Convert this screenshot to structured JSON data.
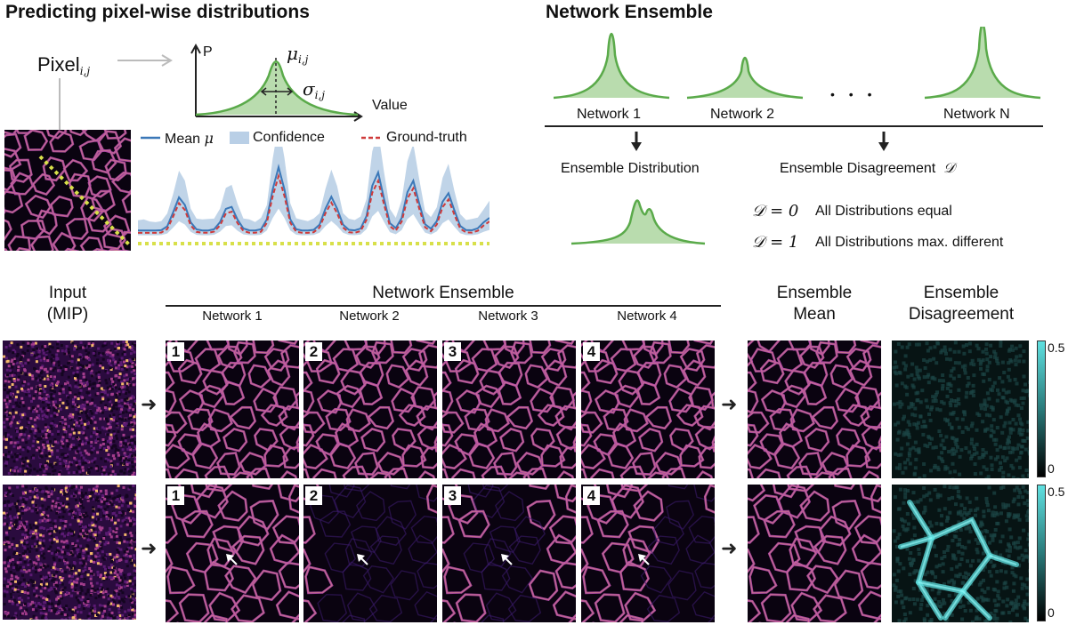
{
  "panel_a": {
    "title": "Predicting pixel-wise distributions",
    "pixel_label": "Pixel",
    "pixel_sub": "i,j",
    "axis_p": "P",
    "axis_value": "Value",
    "mu_label": "μ",
    "mu_sub": "i,j",
    "sigma_label": "σ",
    "sigma_sub": "i,j",
    "legend": {
      "mean": "Mean",
      "mean_symbol": "μ",
      "confidence": "Confidence",
      "ground_truth": "Ground-truth"
    }
  },
  "panel_b": {
    "title": "Network Ensemble",
    "networks": [
      "Network 1",
      "Network 2",
      "Network N"
    ],
    "ellipsis": "• • •",
    "ensemble_distribution": "Ensemble Distribution",
    "ensemble_disagreement": "Ensemble Disagreement",
    "d_symbol": "𝒟",
    "eq0": "𝒟 = 0",
    "eq0_text": "All Distributions equal",
    "eq1": "𝒟 = 1",
    "eq1_text": "All Distributions max. different"
  },
  "panel_c": {
    "input_header": "Input\n(MIP)",
    "ensemble_header": "Network Ensemble",
    "network_labels": [
      "Network 1",
      "Network 2",
      "Network 3",
      "Network 4"
    ],
    "mean_header": "Ensemble\nMean",
    "disagreement_header": "Ensemble\nDisagreement",
    "badges": [
      "1",
      "2",
      "3",
      "4"
    ],
    "colorbar_max": "0.5",
    "colorbar_min": "0"
  },
  "colors": {
    "green": "#5aaa4a",
    "green_fill": "#b9dcae",
    "mean_line": "#3b78b8",
    "confidence": "#b9cfe6",
    "ground_truth": "#cf3b3b",
    "dots": "#d8e04a",
    "cyan": "#5fe0e0"
  }
}
